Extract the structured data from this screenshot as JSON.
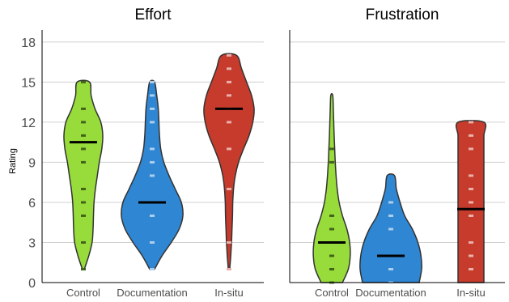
{
  "chart_data": {
    "type": "violin",
    "ylabel": "Rating",
    "ylim": [
      0,
      18.9
    ],
    "yticks": [
      0,
      3,
      6,
      9,
      12,
      15,
      18
    ],
    "grid": true,
    "categories": [
      "Control",
      "Documentation",
      "In-situ"
    ],
    "colors": {
      "Control": "#97dc3a",
      "Documentation": "#2f86d2",
      "In-situ": "#c63b2c"
    },
    "panels": [
      {
        "title": "Effort",
        "violins": [
          {
            "category": "Control",
            "min": 1,
            "max": 15,
            "median": 10.5,
            "points": [
              15,
              13,
              12,
              11,
              10,
              9,
              7,
              6,
              5,
              3,
              1
            ],
            "shape": [
              [
                1,
                0.05
              ],
              [
                2,
                0.28
              ],
              [
                3,
                0.45
              ],
              [
                4,
                0.5
              ],
              [
                5,
                0.52
              ],
              [
                6,
                0.55
              ],
              [
                7,
                0.62
              ],
              [
                8,
                0.72
              ],
              [
                9,
                0.82
              ],
              [
                10,
                0.95
              ],
              [
                11,
                1.0
              ],
              [
                12,
                0.9
              ],
              [
                13,
                0.6
              ],
              [
                14,
                0.4
              ],
              [
                15,
                0.32
              ]
            ]
          },
          {
            "category": "Documentation",
            "min": 1,
            "max": 15,
            "median": 6,
            "points": [
              15,
              14,
              13,
              12,
              10,
              9,
              8,
              5,
              3,
              1
            ],
            "shape": [
              [
                1,
                0.08
              ],
              [
                2,
                0.32
              ],
              [
                3,
                0.62
              ],
              [
                4,
                0.88
              ],
              [
                5,
                1.0
              ],
              [
                6,
                0.95
              ],
              [
                7,
                0.75
              ],
              [
                8,
                0.55
              ],
              [
                9,
                0.38
              ],
              [
                10,
                0.28
              ],
              [
                11,
                0.24
              ],
              [
                12,
                0.22
              ],
              [
                13,
                0.2
              ],
              [
                14,
                0.15
              ],
              [
                15,
                0.08
              ]
            ]
          },
          {
            "category": "In-situ",
            "min": 1,
            "max": 17,
            "median": 13,
            "points": [
              17,
              16,
              15,
              14,
              13,
              12,
              10,
              7,
              3,
              1
            ],
            "shape": [
              [
                1,
                0.03
              ],
              [
                2,
                0.07
              ],
              [
                3,
                0.1
              ],
              [
                4,
                0.12
              ],
              [
                5,
                0.14
              ],
              [
                6,
                0.15
              ],
              [
                7,
                0.18
              ],
              [
                8,
                0.25
              ],
              [
                9,
                0.38
              ],
              [
                10,
                0.58
              ],
              [
                11,
                0.8
              ],
              [
                12,
                0.95
              ],
              [
                13,
                1.0
              ],
              [
                14,
                0.9
              ],
              [
                15,
                0.7
              ],
              [
                16,
                0.5
              ],
              [
                17,
                0.3
              ]
            ]
          }
        ]
      },
      {
        "title": "Frustration",
        "violins": [
          {
            "category": "Control",
            "min": 0,
            "max": 14,
            "median": 3,
            "points": [
              10,
              9,
              5,
              4,
              3,
              2,
              1,
              0
            ],
            "shape": [
              [
                0,
                0.55
              ],
              [
                1,
                0.85
              ],
              [
                2,
                0.95
              ],
              [
                3,
                0.92
              ],
              [
                4,
                0.78
              ],
              [
                5,
                0.55
              ],
              [
                6,
                0.38
              ],
              [
                7,
                0.28
              ],
              [
                8,
                0.22
              ],
              [
                9,
                0.18
              ],
              [
                10,
                0.15
              ],
              [
                11,
                0.12
              ],
              [
                12,
                0.1
              ],
              [
                13,
                0.08
              ],
              [
                14,
                0.05
              ]
            ]
          },
          {
            "category": "Documentation",
            "min": 0,
            "max": 8,
            "median": 2,
            "points": [
              6,
              5,
              4,
              2,
              1,
              0
            ],
            "shape": [
              [
                0,
                0.92
              ],
              [
                1,
                1.0
              ],
              [
                2,
                0.98
              ],
              [
                3,
                0.88
              ],
              [
                4,
                0.7
              ],
              [
                5,
                0.45
              ],
              [
                6,
                0.3
              ],
              [
                7,
                0.18
              ],
              [
                8,
                0.12
              ]
            ]
          },
          {
            "category": "In-situ",
            "min": 0,
            "max": 12,
            "median": 5.5,
            "points": [
              12,
              11,
              10,
              8,
              7,
              6,
              5,
              3,
              2,
              1
            ],
            "shape": [
              [
                0,
                1.0
              ],
              [
                1,
                1.0
              ],
              [
                2,
                1.0
              ],
              [
                3,
                1.0
              ],
              [
                4,
                1.0
              ],
              [
                5,
                1.0
              ],
              [
                6,
                1.0
              ],
              [
                7,
                1.0
              ],
              [
                8,
                1.0
              ],
              [
                9,
                1.0
              ],
              [
                10,
                1.0
              ],
              [
                11,
                1.0
              ],
              [
                12,
                1.0
              ]
            ]
          }
        ]
      }
    ]
  }
}
